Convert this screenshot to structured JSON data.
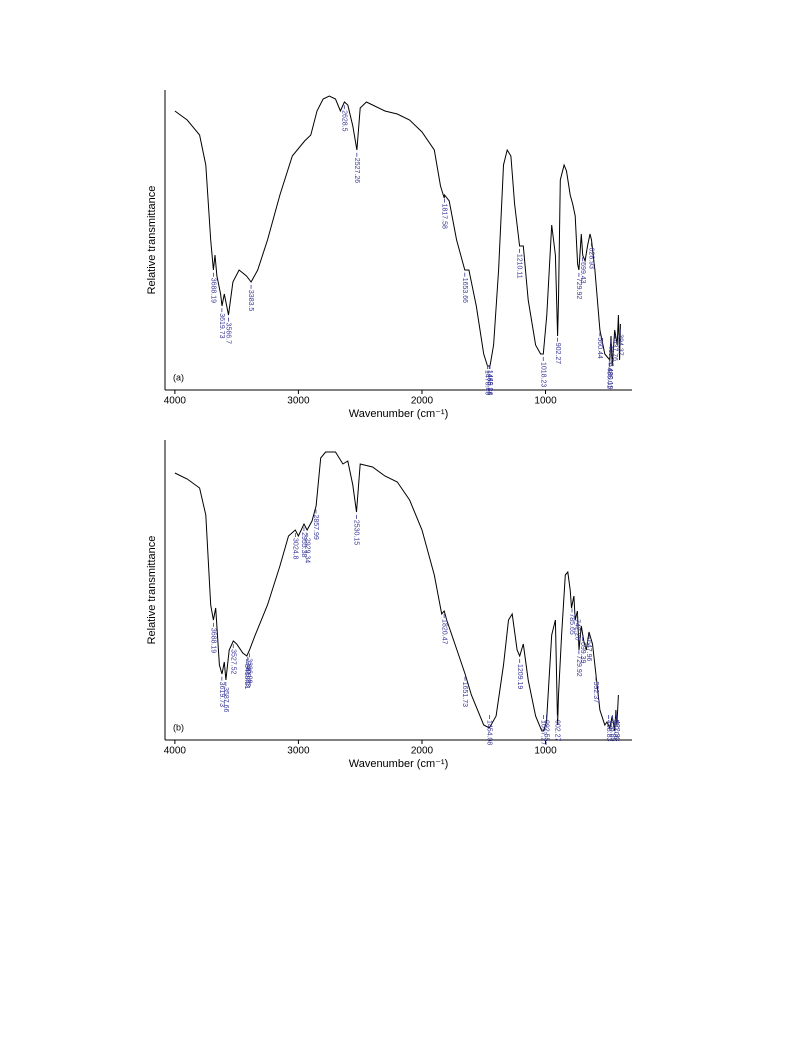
{
  "chart_data": [
    {
      "type": "line",
      "panel": "(a)",
      "ylabel": "Relative transmittance",
      "xlabel": "Wavenumber (cm⁻¹)",
      "xlim": [
        4080,
        300
      ],
      "xticks": [
        4000,
        3000,
        2000,
        1000
      ],
      "ylim": [
        0,
        100
      ],
      "reverse_x": true,
      "color": "#000000",
      "peak_color": "#3a3a9a",
      "x": [
        4000,
        3900,
        3800,
        3750,
        3710,
        3688,
        3675,
        3660,
        3630,
        3619,
        3600,
        3566,
        3530,
        3480,
        3420,
        3383,
        3330,
        3250,
        3150,
        3050,
        2950,
        2900,
        2850,
        2800,
        2750,
        2700,
        2660,
        2628,
        2600,
        2560,
        2527,
        2500,
        2450,
        2400,
        2300,
        2200,
        2100,
        2000,
        1900,
        1850,
        1820,
        1817,
        1780,
        1720,
        1653,
        1620,
        1560,
        1500,
        1470,
        1455,
        1449,
        1420,
        1380,
        1340,
        1310,
        1280,
        1250,
        1210,
        1180,
        1140,
        1080,
        1040,
        1018,
        990,
        950,
        920,
        902,
        895,
        880,
        850,
        830,
        800,
        780,
        760,
        740,
        730,
        710,
        699,
        680,
        660,
        640,
        628,
        600,
        560,
        520,
        500,
        480,
        470,
        460,
        440,
        420,
        410,
        400,
        394
      ],
      "values": [
        93,
        90,
        85,
        75,
        50,
        40,
        45,
        38,
        32,
        28,
        32,
        25,
        36,
        40,
        38,
        36,
        40,
        50,
        65,
        78,
        83,
        85,
        93,
        97,
        98,
        97,
        93,
        96,
        95,
        88,
        80,
        94,
        96,
        95,
        93,
        92,
        90,
        86,
        80,
        68,
        64,
        65,
        63,
        50,
        40,
        40,
        28,
        12,
        8,
        8,
        8,
        15,
        40,
        75,
        80,
        78,
        62,
        48,
        48,
        30,
        15,
        12,
        12,
        25,
        55,
        45,
        18,
        30,
        70,
        75,
        73,
        65,
        62,
        58,
        42,
        40,
        52,
        45,
        43,
        48,
        52,
        50,
        40,
        20,
        12,
        11,
        10,
        18,
        8,
        20,
        15,
        25,
        10,
        22
      ],
      "peaks": [
        3688.19,
        3619.73,
        3566.7,
        3383.5,
        2628.5,
        2527.26,
        1817.58,
        1653.66,
        1470.46,
        1455.88,
        1449.24,
        1210.11,
        1018.23,
        902.27,
        729.92,
        699.43,
        628.93,
        560.44,
        485.01,
        480.19,
        469.58,
        437.76,
        394.37
      ]
    },
    {
      "type": "line",
      "panel": "(b)",
      "ylabel": "Relative transmittance",
      "xlabel": "Wavenumber (cm⁻¹)",
      "xlim": [
        4080,
        300
      ],
      "xticks": [
        4000,
        3000,
        2000,
        1000
      ],
      "ylim": [
        0,
        100
      ],
      "reverse_x": true,
      "color": "#000000",
      "peak_color": "#3a3a9a",
      "x": [
        4000,
        3900,
        3800,
        3750,
        3710,
        3688,
        3670,
        3640,
        3619,
        3600,
        3587,
        3560,
        3527,
        3500,
        3450,
        3418,
        3396,
        3350,
        3250,
        3150,
        3080,
        3025,
        3000,
        2955,
        2930,
        2890,
        2857,
        2820,
        2780,
        2700,
        2640,
        2600,
        2560,
        2530,
        2500,
        2400,
        2300,
        2200,
        2100,
        2000,
        1900,
        1840,
        1820,
        1800,
        1700,
        1651,
        1600,
        1500,
        1454,
        1400,
        1340,
        1300,
        1270,
        1230,
        1209,
        1180,
        1140,
        1080,
        1030,
        1017,
        992,
        950,
        920,
        902,
        895,
        870,
        840,
        820,
        800,
        790,
        770,
        760,
        742,
        729,
        710,
        690,
        670,
        648,
        620,
        592,
        560,
        520,
        502,
        480,
        460,
        440,
        430,
        422,
        410
      ],
      "values": [
        89,
        87,
        84,
        75,
        45,
        40,
        44,
        25,
        22,
        26,
        20,
        30,
        33,
        32,
        29,
        28,
        30,
        35,
        45,
        58,
        68,
        70,
        68,
        72,
        70,
        73,
        78,
        94,
        96,
        96,
        92,
        93,
        85,
        76,
        92,
        91,
        88,
        86,
        80,
        70,
        55,
        42,
        43,
        40,
        28,
        22,
        15,
        5,
        4,
        8,
        25,
        40,
        42,
        30,
        28,
        32,
        20,
        8,
        3,
        3,
        6,
        35,
        40,
        5,
        15,
        35,
        55,
        56,
        50,
        44,
        48,
        40,
        43,
        30,
        38,
        33,
        30,
        36,
        32,
        22,
        10,
        5,
        6,
        4,
        8,
        3,
        10,
        5,
        15
      ],
      "peaks": [
        3688.19,
        3619.73,
        3587.66,
        3527.52,
        3418.21,
        3409.83,
        3396.99,
        3024.8,
        2955.38,
        2929.34,
        2857.99,
        2530.15,
        1820.47,
        1651.73,
        1454.08,
        1209.19,
        1017.27,
        992.55,
        902.27,
        785.65,
        742.26,
        729.92,
        699.39,
        647.96,
        592.37,
        488.83,
        458.89,
        430.06,
        422.33
      ]
    }
  ]
}
